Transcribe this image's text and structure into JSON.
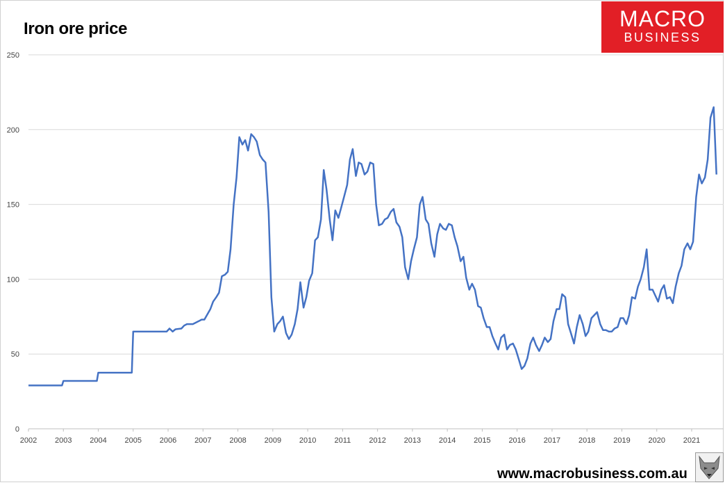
{
  "title": "Iron ore price",
  "logo": {
    "line1": "MACRO",
    "line2": "BUSINESS",
    "color": "#e21f26"
  },
  "footer_url": "www.macrobusiness.com.au",
  "footer_icon": "fox-logo-icon",
  "chart_data": {
    "type": "line",
    "title": "Iron ore price",
    "xlabel": "",
    "ylabel": "",
    "xlim": [
      2002,
      2021.58
    ],
    "ylim": [
      0,
      250
    ],
    "x_ticks": [
      "2002",
      "2003",
      "2004",
      "2005",
      "2006",
      "2007",
      "2008",
      "2009",
      "2010",
      "2011",
      "2012",
      "2013",
      "2014",
      "2015",
      "2016",
      "2017",
      "2018",
      "2019",
      "2020",
      "2021"
    ],
    "y_ticks": [
      "0",
      "50",
      "100",
      "150",
      "200",
      "250"
    ],
    "grid": "horizontal",
    "legend": "none",
    "line_color": "#4472c4",
    "series": [
      {
        "points": [
          [
            2002.0,
            29
          ],
          [
            2002.96,
            29
          ],
          [
            2003.0,
            32
          ],
          [
            2003.96,
            32
          ],
          [
            2004.0,
            37.5
          ],
          [
            2004.96,
            37.5
          ],
          [
            2005.0,
            65
          ],
          [
            2005.96,
            65
          ],
          [
            2006.04,
            67
          ],
          [
            2006.13,
            65
          ],
          [
            2006.21,
            66.5
          ],
          [
            2006.38,
            67
          ],
          [
            2006.46,
            69
          ],
          [
            2006.54,
            70
          ],
          [
            2006.71,
            70
          ],
          [
            2006.88,
            72
          ],
          [
            2006.96,
            73
          ],
          [
            2007.04,
            73
          ],
          [
            2007.21,
            80
          ],
          [
            2007.29,
            85
          ],
          [
            2007.38,
            88
          ],
          [
            2007.46,
            91
          ],
          [
            2007.54,
            102
          ],
          [
            2007.63,
            103
          ],
          [
            2007.71,
            105
          ],
          [
            2007.79,
            120
          ],
          [
            2007.88,
            150
          ],
          [
            2007.96,
            168
          ],
          [
            2008.04,
            195
          ],
          [
            2008.13,
            190
          ],
          [
            2008.21,
            193
          ],
          [
            2008.29,
            186
          ],
          [
            2008.38,
            197
          ],
          [
            2008.46,
            195
          ],
          [
            2008.54,
            192
          ],
          [
            2008.63,
            183
          ],
          [
            2008.71,
            180
          ],
          [
            2008.79,
            178
          ],
          [
            2008.88,
            145
          ],
          [
            2008.96,
            88
          ],
          [
            2009.04,
            65
          ],
          [
            2009.13,
            70
          ],
          [
            2009.21,
            72
          ],
          [
            2009.29,
            75
          ],
          [
            2009.38,
            64
          ],
          [
            2009.46,
            60
          ],
          [
            2009.54,
            63
          ],
          [
            2009.63,
            70
          ],
          [
            2009.71,
            80
          ],
          [
            2009.79,
            98
          ],
          [
            2009.88,
            81
          ],
          [
            2009.96,
            88
          ],
          [
            2010.04,
            99
          ],
          [
            2010.13,
            104
          ],
          [
            2010.21,
            126
          ],
          [
            2010.29,
            128
          ],
          [
            2010.38,
            140
          ],
          [
            2010.46,
            173
          ],
          [
            2010.54,
            160
          ],
          [
            2010.63,
            140
          ],
          [
            2010.71,
            126
          ],
          [
            2010.79,
            146
          ],
          [
            2010.88,
            141
          ],
          [
            2010.96,
            148
          ],
          [
            2011.04,
            155
          ],
          [
            2011.13,
            163
          ],
          [
            2011.21,
            180
          ],
          [
            2011.29,
            187
          ],
          [
            2011.38,
            169
          ],
          [
            2011.46,
            178
          ],
          [
            2011.54,
            177
          ],
          [
            2011.63,
            170
          ],
          [
            2011.71,
            172
          ],
          [
            2011.79,
            178
          ],
          [
            2011.88,
            177
          ],
          [
            2011.96,
            150
          ],
          [
            2012.04,
            136
          ],
          [
            2012.13,
            137
          ],
          [
            2012.21,
            140
          ],
          [
            2012.29,
            141
          ],
          [
            2012.38,
            145
          ],
          [
            2012.46,
            147
          ],
          [
            2012.54,
            138
          ],
          [
            2012.63,
            135
          ],
          [
            2012.71,
            128
          ],
          [
            2012.79,
            108
          ],
          [
            2012.88,
            100
          ],
          [
            2012.96,
            112
          ],
          [
            2013.04,
            120
          ],
          [
            2013.13,
            128
          ],
          [
            2013.21,
            150
          ],
          [
            2013.29,
            155
          ],
          [
            2013.38,
            140
          ],
          [
            2013.46,
            137
          ],
          [
            2013.54,
            124
          ],
          [
            2013.63,
            115
          ],
          [
            2013.71,
            130
          ],
          [
            2013.79,
            137
          ],
          [
            2013.88,
            134
          ],
          [
            2013.96,
            133
          ],
          [
            2014.04,
            137
          ],
          [
            2014.13,
            136
          ],
          [
            2014.21,
            128
          ],
          [
            2014.29,
            122
          ],
          [
            2014.38,
            112
          ],
          [
            2014.46,
            115
          ],
          [
            2014.54,
            101
          ],
          [
            2014.63,
            93
          ],
          [
            2014.71,
            97
          ],
          [
            2014.79,
            93
          ],
          [
            2014.88,
            82
          ],
          [
            2014.96,
            81
          ],
          [
            2015.04,
            74
          ],
          [
            2015.13,
            68
          ],
          [
            2015.21,
            68
          ],
          [
            2015.29,
            62
          ],
          [
            2015.38,
            57
          ],
          [
            2015.46,
            53
          ],
          [
            2015.54,
            61
          ],
          [
            2015.63,
            63
          ],
          [
            2015.71,
            53
          ],
          [
            2015.79,
            56
          ],
          [
            2015.88,
            57
          ],
          [
            2015.96,
            53
          ],
          [
            2016.04,
            47
          ],
          [
            2016.13,
            40
          ],
          [
            2016.21,
            42
          ],
          [
            2016.29,
            47
          ],
          [
            2016.38,
            57
          ],
          [
            2016.46,
            61
          ],
          [
            2016.54,
            56
          ],
          [
            2016.63,
            52
          ],
          [
            2016.71,
            56
          ],
          [
            2016.79,
            61
          ],
          [
            2016.88,
            58
          ],
          [
            2016.96,
            60
          ],
          [
            2017.04,
            72
          ],
          [
            2017.13,
            80
          ],
          [
            2017.21,
            80
          ],
          [
            2017.29,
            90
          ],
          [
            2017.38,
            88
          ],
          [
            2017.46,
            70
          ],
          [
            2017.54,
            64
          ],
          [
            2017.63,
            57
          ],
          [
            2017.71,
            68
          ],
          [
            2017.79,
            76
          ],
          [
            2017.88,
            70
          ],
          [
            2017.96,
            62
          ],
          [
            2018.04,
            65
          ],
          [
            2018.13,
            74
          ],
          [
            2018.21,
            76
          ],
          [
            2018.29,
            78
          ],
          [
            2018.38,
            70
          ],
          [
            2018.46,
            66
          ],
          [
            2018.54,
            66
          ],
          [
            2018.63,
            65
          ],
          [
            2018.71,
            65
          ],
          [
            2018.79,
            67
          ],
          [
            2018.88,
            68
          ],
          [
            2018.96,
            74
          ],
          [
            2019.04,
            74
          ],
          [
            2019.13,
            70
          ],
          [
            2019.21,
            76
          ],
          [
            2019.29,
            88
          ],
          [
            2019.38,
            87
          ],
          [
            2019.46,
            95
          ],
          [
            2019.54,
            100
          ],
          [
            2019.63,
            108
          ],
          [
            2019.71,
            120
          ],
          [
            2019.79,
            93
          ],
          [
            2019.88,
            93
          ],
          [
            2019.96,
            89
          ],
          [
            2020.04,
            85
          ],
          [
            2020.13,
            93
          ],
          [
            2020.21,
            96
          ],
          [
            2020.29,
            87
          ],
          [
            2020.38,
            88
          ],
          [
            2020.46,
            84
          ],
          [
            2020.54,
            95
          ],
          [
            2020.63,
            104
          ],
          [
            2020.71,
            109
          ],
          [
            2020.79,
            120
          ],
          [
            2020.88,
            124
          ],
          [
            2020.96,
            120
          ],
          [
            2021.04,
            125
          ],
          [
            2021.13,
            155
          ],
          [
            2021.21,
            170
          ],
          [
            2021.29,
            164
          ],
          [
            2021.38,
            168
          ],
          [
            2021.46,
            180
          ],
          [
            2021.54,
            208
          ],
          [
            2021.63,
            215
          ],
          [
            2021.71,
            170
          ]
        ]
      }
    ]
  }
}
